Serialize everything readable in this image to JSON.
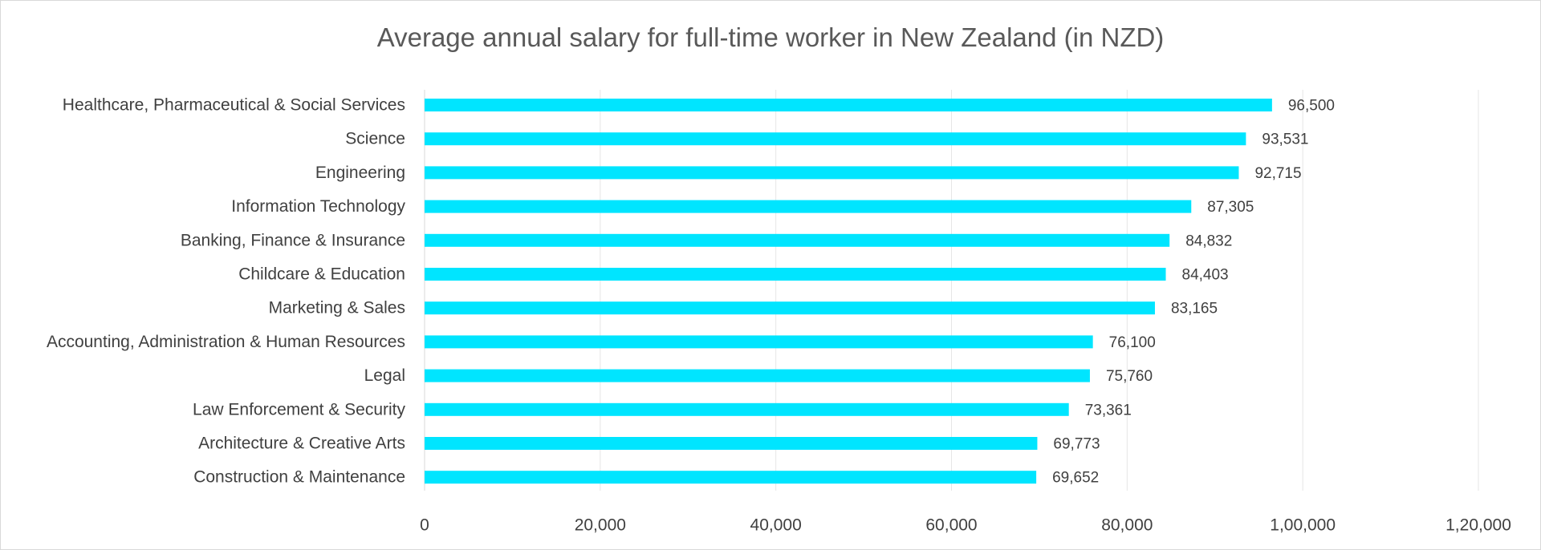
{
  "chart_data": {
    "type": "bar",
    "orientation": "horizontal",
    "title": "Average annual salary for full-time worker in New Zealand (in NZD)",
    "xlabel": "",
    "ylabel": "",
    "xlim": [
      0,
      120000
    ],
    "grid": "vertical",
    "legend": "none",
    "bar_color": "#00e5ff",
    "categories": [
      "Healthcare, Pharmaceutical & Social Services",
      "Science",
      "Engineering",
      "Information Technology",
      "Banking, Finance & Insurance",
      "Childcare & Education",
      "Marketing & Sales",
      "Accounting, Administration & Human Resources",
      "Legal",
      "Law Enforcement & Security",
      "Architecture & Creative Arts",
      "Construction & Maintenance"
    ],
    "values": [
      96500,
      93531,
      92715,
      87305,
      84832,
      84403,
      83165,
      76100,
      75760,
      73361,
      69773,
      69652
    ],
    "data_labels": [
      "96,500",
      "93,531",
      "92,715",
      "87,305",
      "84,832",
      "84,403",
      "83,165",
      "76,100",
      "75,760",
      "73,361",
      "69,773",
      "69,652"
    ],
    "ticks": [
      0,
      20000,
      40000,
      60000,
      80000,
      100000,
      120000
    ],
    "tick_labels": [
      "0",
      "20,000",
      "40,000",
      "60,000",
      "80,000",
      "1,00,000",
      "1,20,000"
    ]
  }
}
